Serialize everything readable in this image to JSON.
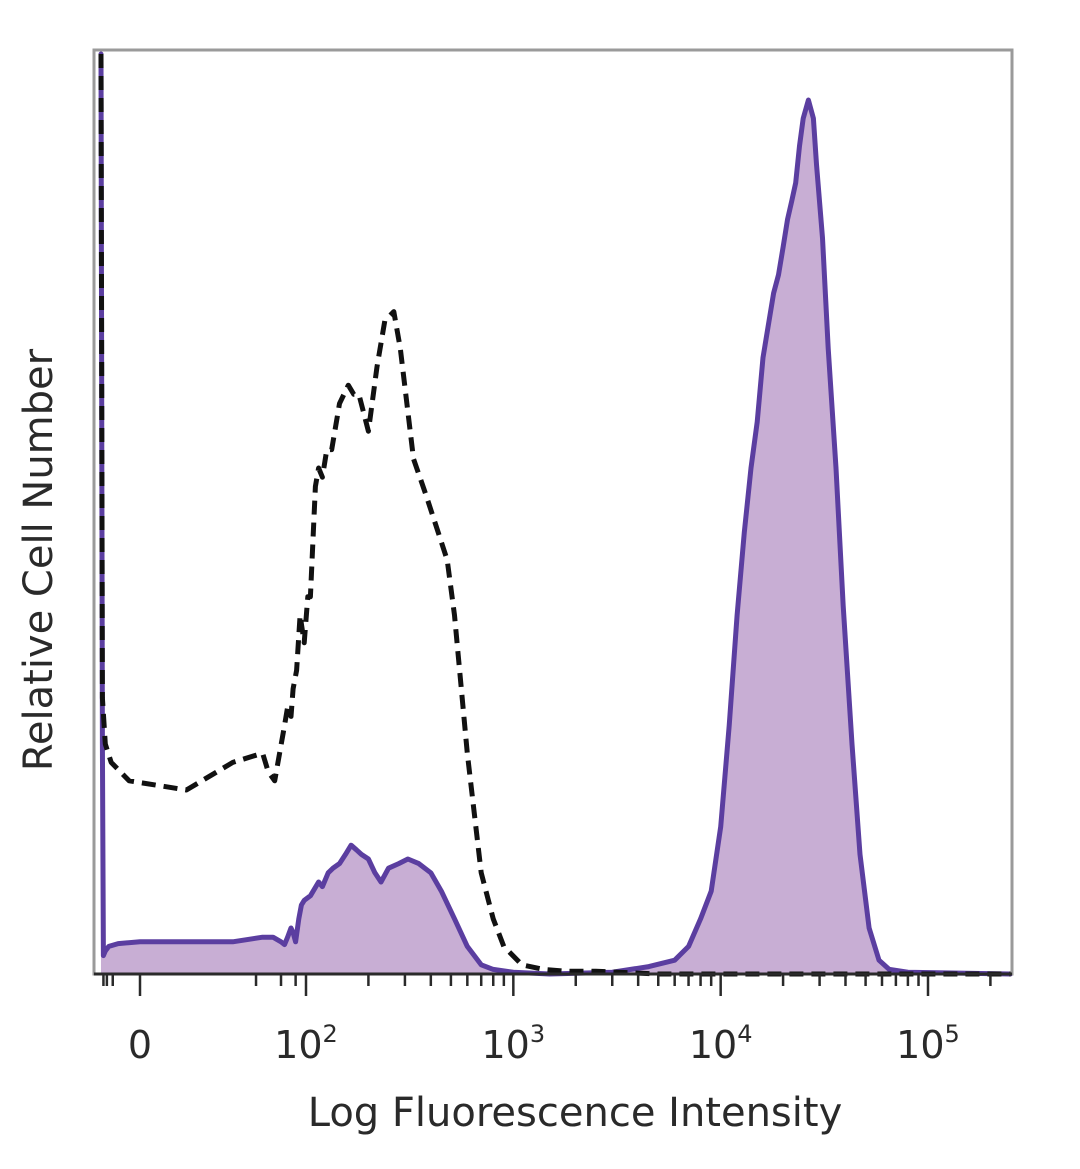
{
  "chart_data": {
    "type": "area",
    "xlabel": "Log Fluorescence Intensity",
    "ylabel": "Relative Cell Number",
    "x_scale": "biexponential",
    "x_ticks": [
      {
        "value": 0,
        "base": "0",
        "exp": ""
      },
      {
        "value": 100,
        "base": "10",
        "exp": "2"
      },
      {
        "value": 1000,
        "base": "10",
        "exp": "3"
      },
      {
        "value": 10000,
        "base": "10",
        "exp": "4"
      },
      {
        "value": 100000,
        "base": "10",
        "exp": "5"
      }
    ],
    "xlim": [
      -100,
      250000
    ],
    "ylim": [
      0,
      100
    ],
    "grid": false,
    "legend": "none",
    "series": [
      {
        "style": "dashed",
        "color": "#111111",
        "points": [
          [
            -100,
            100
          ],
          [
            -85,
            30
          ],
          [
            -60,
            25
          ],
          [
            -30,
            23
          ],
          [
            -10,
            21
          ],
          [
            10,
            20
          ],
          [
            20,
            23
          ],
          [
            30,
            24
          ],
          [
            35,
            22
          ],
          [
            42,
            21
          ],
          [
            55,
            27
          ],
          [
            60,
            29
          ],
          [
            66,
            28
          ],
          [
            70,
            31
          ],
          [
            77,
            33
          ],
          [
            85,
            39
          ],
          [
            95,
            36
          ],
          [
            102,
            41
          ],
          [
            105,
            41
          ],
          [
            111,
            53
          ],
          [
            115,
            55
          ],
          [
            120,
            54
          ],
          [
            126,
            57
          ],
          [
            133,
            57
          ],
          [
            145,
            62
          ],
          [
            160,
            64
          ],
          [
            170,
            63
          ],
          [
            180,
            63
          ],
          [
            200,
            59
          ],
          [
            220,
            66
          ],
          [
            240,
            71
          ],
          [
            265,
            72
          ],
          [
            285,
            68
          ],
          [
            330,
            56
          ],
          [
            380,
            52
          ],
          [
            420,
            49
          ],
          [
            480,
            45
          ],
          [
            520,
            39
          ],
          [
            600,
            24
          ],
          [
            700,
            11
          ],
          [
            800,
            6
          ],
          [
            900,
            3
          ],
          [
            1100,
            1
          ],
          [
            1400,
            0.5
          ],
          [
            1800,
            0.3
          ],
          [
            2500,
            0.3
          ],
          [
            5000,
            0
          ],
          [
            10000,
            0
          ],
          [
            250000,
            0
          ]
        ]
      },
      {
        "style": "solid-filled",
        "color": "#5b3ea0",
        "fill": "#c8aed4",
        "points": [
          [
            -100,
            100
          ],
          [
            -85,
            25
          ],
          [
            -75,
            2
          ],
          [
            -60,
            2.5
          ],
          [
            -40,
            3
          ],
          [
            -20,
            3.3
          ],
          [
            0,
            3.5
          ],
          [
            20,
            3.5
          ],
          [
            30,
            4
          ],
          [
            40,
            4
          ],
          [
            50,
            3.5
          ],
          [
            55,
            3.2
          ],
          [
            60,
            4
          ],
          [
            66,
            5
          ],
          [
            70,
            4.5
          ],
          [
            75,
            3.5
          ],
          [
            82,
            6
          ],
          [
            88,
            7.5
          ],
          [
            95,
            8
          ],
          [
            105,
            8.5
          ],
          [
            115,
            10
          ],
          [
            120,
            9.5
          ],
          [
            128,
            11
          ],
          [
            135,
            11.5
          ],
          [
            145,
            12
          ],
          [
            155,
            13
          ],
          [
            165,
            14
          ],
          [
            175,
            13.5
          ],
          [
            185,
            13
          ],
          [
            200,
            12.5
          ],
          [
            215,
            11
          ],
          [
            230,
            10
          ],
          [
            250,
            11.5
          ],
          [
            280,
            12
          ],
          [
            310,
            12.5
          ],
          [
            350,
            12
          ],
          [
            400,
            11
          ],
          [
            450,
            9
          ],
          [
            520,
            6
          ],
          [
            600,
            3
          ],
          [
            700,
            1
          ],
          [
            800,
            0.5
          ],
          [
            1000,
            0.2
          ],
          [
            1500,
            0
          ],
          [
            3000,
            0.2
          ],
          [
            4500,
            0.8
          ],
          [
            6000,
            1.5
          ],
          [
            7000,
            3
          ],
          [
            8000,
            6
          ],
          [
            9000,
            9
          ],
          [
            10000,
            16
          ],
          [
            11000,
            27
          ],
          [
            12000,
            39
          ],
          [
            13000,
            48
          ],
          [
            14000,
            55
          ],
          [
            15000,
            60
          ],
          [
            16000,
            67
          ],
          [
            18000,
            74
          ],
          [
            19000,
            76
          ],
          [
            20000,
            79
          ],
          [
            21000,
            82
          ],
          [
            22000,
            84
          ],
          [
            23000,
            86
          ],
          [
            24000,
            90
          ],
          [
            25000,
            93
          ],
          [
            26500,
            95
          ],
          [
            28000,
            93
          ],
          [
            29000,
            88
          ],
          [
            31000,
            80
          ],
          [
            33000,
            68
          ],
          [
            36000,
            55
          ],
          [
            39000,
            40
          ],
          [
            43000,
            25
          ],
          [
            47000,
            13
          ],
          [
            52000,
            5
          ],
          [
            58000,
            1.5
          ],
          [
            65000,
            0.5
          ],
          [
            80000,
            0.2
          ],
          [
            250000,
            0
          ]
        ]
      }
    ]
  }
}
